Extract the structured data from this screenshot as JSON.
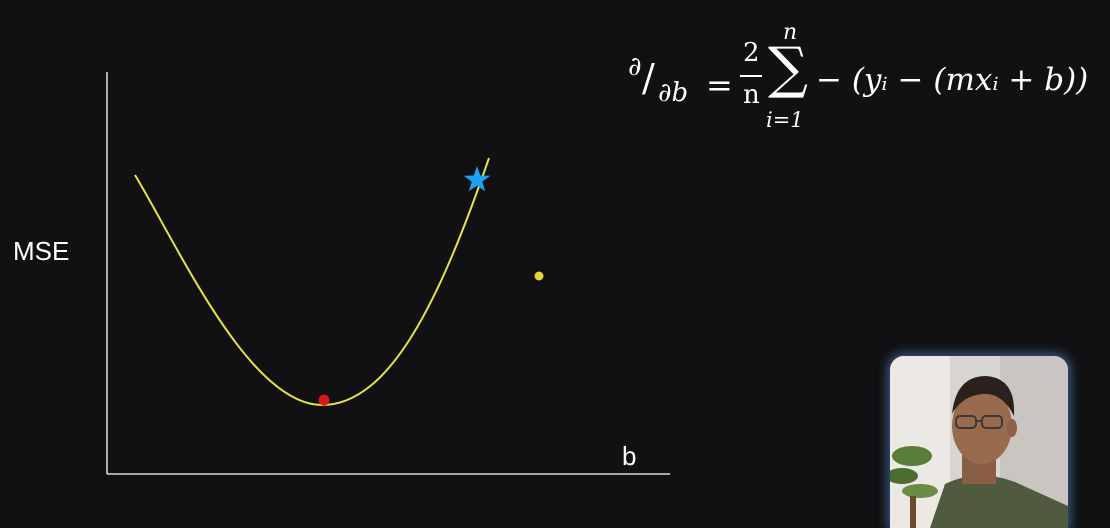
{
  "diagram": {
    "y_axis_label": "MSE",
    "x_axis_label": "b",
    "curve": {
      "type": "parabola",
      "color": "#e6e14a",
      "minimum_marker_color": "#d11a1a"
    },
    "current_point_marker": {
      "shape": "star",
      "color": "#1aa3f0"
    },
    "cursor_dot_color": "#e8d23a",
    "axis_color": "#d9d9d9"
  },
  "formula": {
    "partial_numerator": "∂",
    "partial_slash": "/",
    "partial_denominator": "∂b",
    "equals": "=",
    "fraction_numerator": "2",
    "fraction_denominator": "n",
    "sum_symbol": "∑",
    "sum_upper": "n",
    "sum_lower": "i=1",
    "expression": "− (yᵢ − (mxᵢ + b))"
  },
  "presenter_video": {
    "description_icon": "presenter-webcam"
  }
}
